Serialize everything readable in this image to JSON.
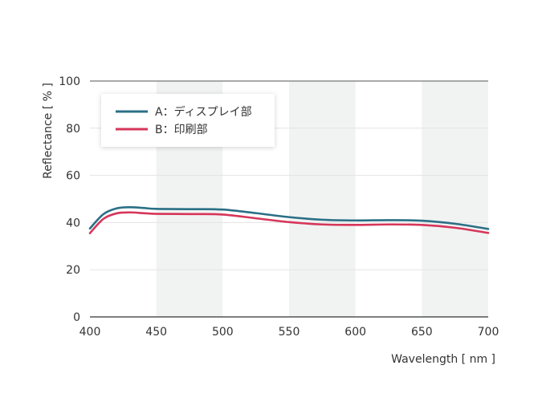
{
  "chart_data": {
    "type": "line",
    "title": "",
    "xlabel": "Wavelength [ nm ]",
    "ylabel": "Reflectance [ % ]",
    "xlim": [
      400,
      700
    ],
    "ylim": [
      0,
      100
    ],
    "xticks": [
      400,
      450,
      500,
      550,
      600,
      650,
      700
    ],
    "yticks": [
      0,
      20,
      40,
      60,
      80,
      100
    ],
    "shaded_bands": [
      [
        450,
        500
      ],
      [
        550,
        600
      ],
      [
        650,
        700
      ]
    ],
    "legend_position": "top-left",
    "series": [
      {
        "name": "A：ディスプレイ部",
        "color": "#2a6f86",
        "x": [
          400,
          410,
          420,
          430,
          440,
          450,
          475,
          500,
          525,
          550,
          575,
          600,
          625,
          650,
          675,
          700
        ],
        "y": [
          37.5,
          43.5,
          46,
          46.5,
          46.2,
          45.8,
          45.7,
          45.5,
          44,
          42.3,
          41.2,
          40.9,
          41,
          40.8,
          39.5,
          37.3
        ]
      },
      {
        "name": "B：印刷部",
        "color": "#d6365a",
        "x": [
          400,
          410,
          420,
          430,
          440,
          450,
          475,
          500,
          525,
          550,
          575,
          600,
          625,
          650,
          675,
          700
        ],
        "y": [
          35.5,
          41.5,
          43.9,
          44.3,
          44,
          43.7,
          43.6,
          43.4,
          41.8,
          40.2,
          39.2,
          39,
          39.2,
          39,
          37.8,
          35.6
        ]
      }
    ]
  }
}
